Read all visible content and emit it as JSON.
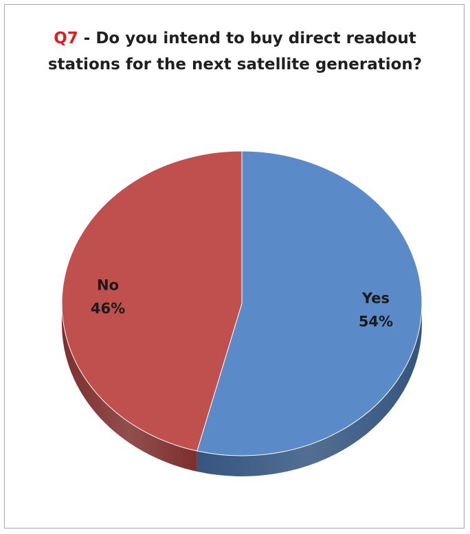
{
  "chart_data": {
    "type": "pie",
    "title_prefix": "Q7",
    "title_text": " - Do you intend to buy direct readout stations for the next satellite generation?",
    "slices": [
      {
        "label": "Yes",
        "value": 54,
        "value_label": "54%",
        "color": "#5b8ac8",
        "side_color": "#34557f"
      },
      {
        "label": "No",
        "value": 46,
        "value_label": "46%",
        "color": "#c0504d",
        "side_color": "#7d2f2d"
      }
    ],
    "title_prefix_color": "#e31b1b"
  }
}
